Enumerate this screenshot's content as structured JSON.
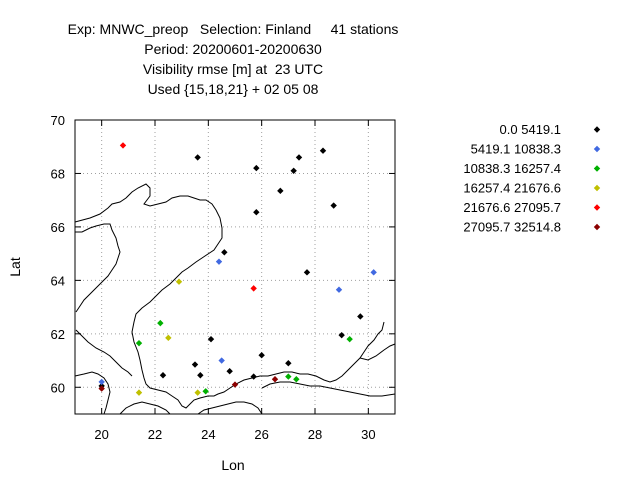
{
  "chart_data": {
    "type": "scatter",
    "title_lines": [
      "Exp: MNWC_preop   Selection: Finland     41 stations",
      "Period: 20200601-20200630",
      "Visibility rmse [m] at  23 UTC",
      "Used {15,18,21} + 02 05 08"
    ],
    "xlabel": "Lon",
    "ylabel": "Lat",
    "xlim": [
      19,
      31
    ],
    "ylim": [
      59,
      70
    ],
    "xticks": [
      20,
      22,
      24,
      26,
      28,
      30
    ],
    "yticks": [
      60,
      62,
      64,
      66,
      68,
      70
    ],
    "grid": true,
    "legend_position": "right",
    "series": [
      {
        "name": "0.0 5419.1",
        "color": "#000000",
        "points": [
          [
            23.6,
            68.6
          ],
          [
            25.8,
            68.2
          ],
          [
            27.4,
            68.6
          ],
          [
            28.3,
            68.85
          ],
          [
            27.2,
            68.1
          ],
          [
            26.7,
            67.35
          ],
          [
            25.8,
            66.55
          ],
          [
            28.7,
            66.8
          ],
          [
            24.6,
            65.05
          ],
          [
            27.7,
            64.3
          ],
          [
            29.7,
            62.65
          ],
          [
            29.0,
            61.95
          ],
          [
            24.1,
            61.8
          ],
          [
            26.0,
            61.2
          ],
          [
            23.5,
            60.85
          ],
          [
            27.0,
            60.9
          ],
          [
            24.8,
            60.6
          ],
          [
            23.7,
            60.45
          ],
          [
            22.3,
            60.45
          ],
          [
            25.7,
            60.4
          ],
          [
            20.0,
            60.05
          ]
        ]
      },
      {
        "name": "5419.1 10838.3",
        "color": "#4169e1",
        "points": [
          [
            24.4,
            64.7
          ],
          [
            28.9,
            63.65
          ],
          [
            30.2,
            64.3
          ],
          [
            24.5,
            61.0
          ],
          [
            20.0,
            60.2
          ]
        ]
      },
      {
        "name": "10838.3 16257.4",
        "color": "#00b000",
        "points": [
          [
            22.2,
            62.4
          ],
          [
            21.4,
            61.65
          ],
          [
            29.3,
            61.8
          ],
          [
            27.0,
            60.4
          ],
          [
            27.3,
            60.3
          ],
          [
            23.9,
            59.85
          ]
        ]
      },
      {
        "name": "16257.4 21676.6",
        "color": "#c0c000",
        "points": [
          [
            22.9,
            63.95
          ],
          [
            22.5,
            61.85
          ],
          [
            21.4,
            59.8
          ],
          [
            23.6,
            59.8
          ]
        ]
      },
      {
        "name": "21676.6 27095.7",
        "color": "#ff0000",
        "points": [
          [
            20.8,
            69.05
          ],
          [
            25.7,
            63.7
          ]
        ]
      },
      {
        "name": "27095.7 32514.8",
        "color": "#8b0000",
        "points": [
          [
            20.0,
            59.95
          ],
          [
            25.0,
            60.1
          ],
          [
            26.5,
            60.3
          ]
        ]
      }
    ]
  }
}
